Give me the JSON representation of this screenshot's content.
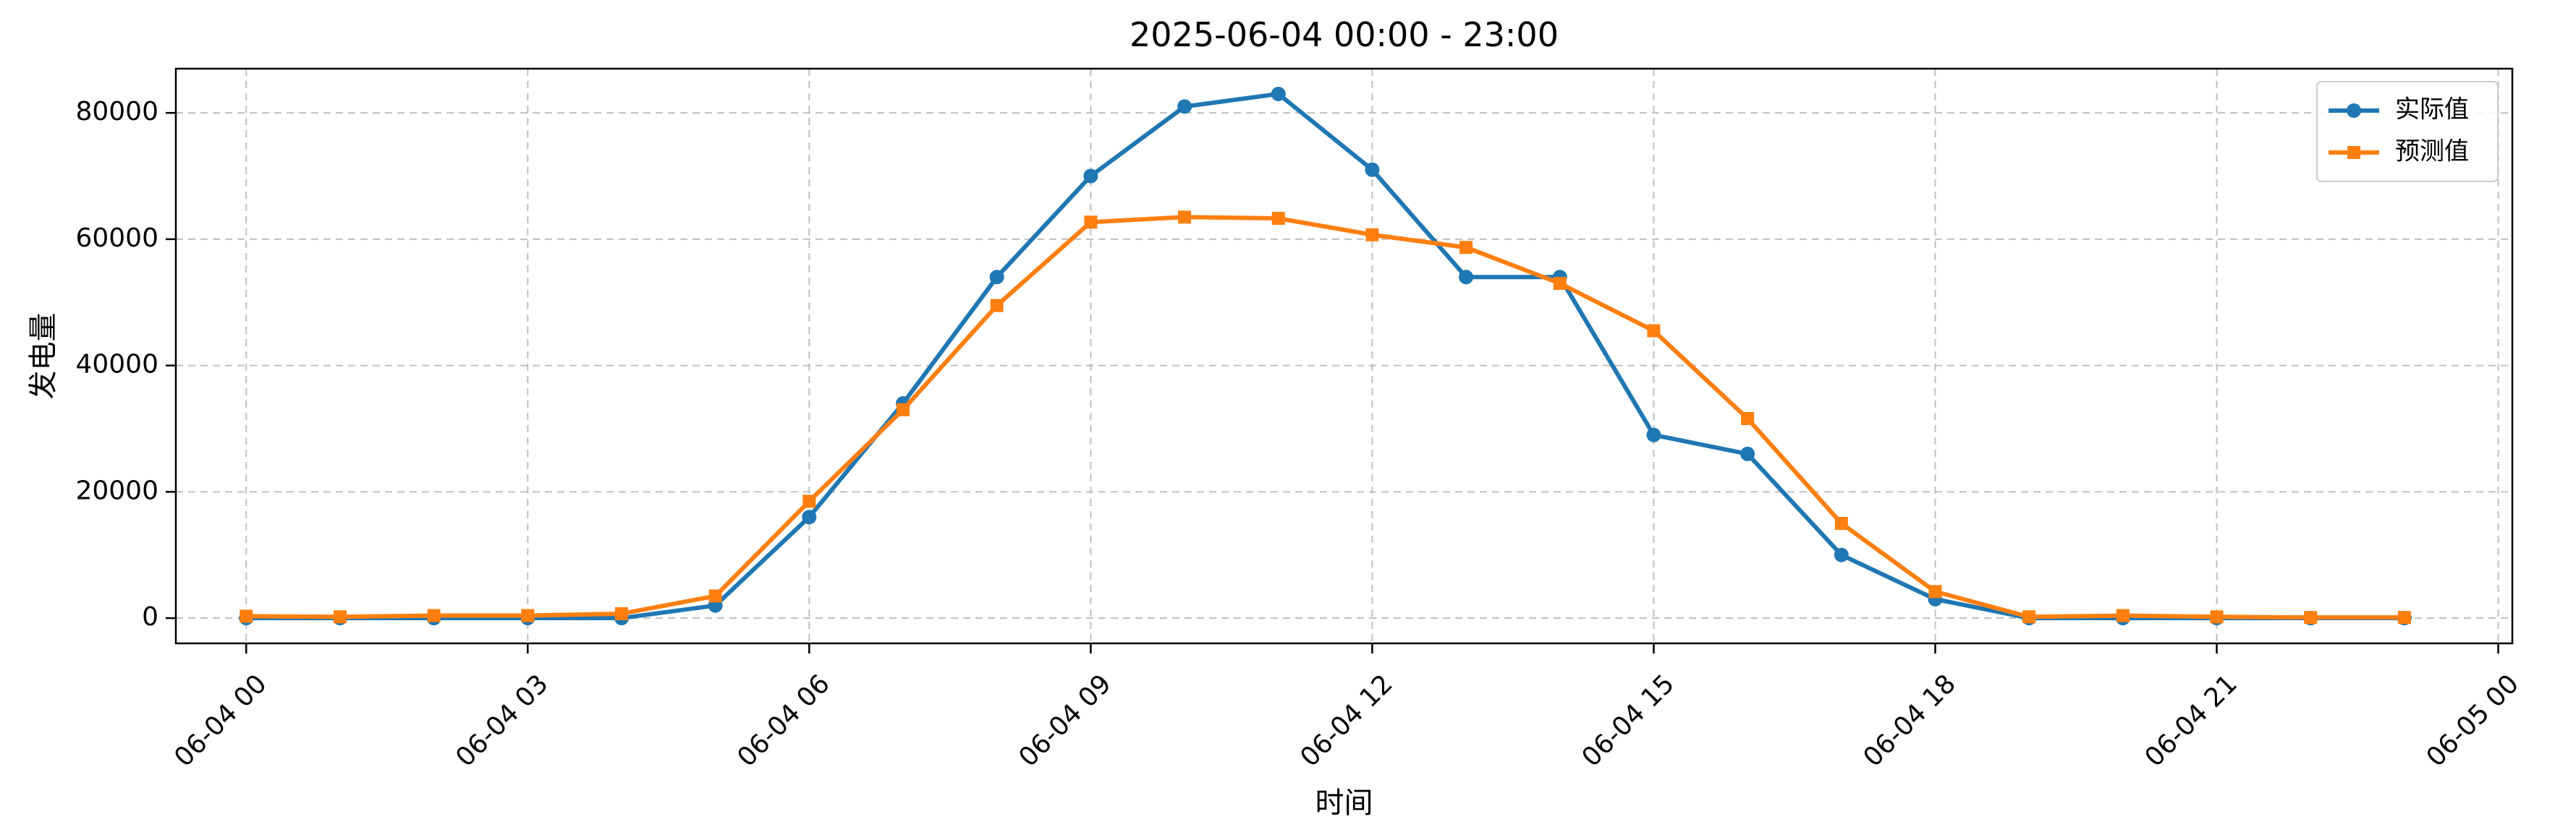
{
  "chart_data": {
    "type": "line",
    "title": "2025-06-04 00:00 - 23:00",
    "xlabel": "时间",
    "ylabel": "发电量",
    "x_unit": "hour of day",
    "xlim": [
      -0.75,
      24.15
    ],
    "ylim": [
      -4000,
      87000
    ],
    "x_ticks": [
      0,
      3,
      6,
      9,
      12,
      15,
      18,
      21,
      24
    ],
    "x_tick_labels": [
      "06-04 00",
      "06-04 03",
      "06-04 06",
      "06-04 09",
      "06-04 12",
      "06-04 15",
      "06-04 18",
      "06-04 21",
      "06-05 00"
    ],
    "y_ticks": [
      0,
      20000,
      40000,
      60000,
      80000
    ],
    "y_tick_labels": [
      "0",
      "20000",
      "40000",
      "60000",
      "80000"
    ],
    "grid": true,
    "legend_position": "top-right",
    "x": [
      0,
      1,
      2,
      3,
      4,
      5,
      6,
      7,
      8,
      9,
      10,
      11,
      12,
      13,
      14,
      15,
      16,
      17,
      18,
      19,
      20,
      21,
      22,
      23
    ],
    "series": [
      {
        "name": "实际值",
        "color": "#1f77b4",
        "marker": "circle",
        "values": [
          0,
          0,
          0,
          0,
          0,
          2000,
          16000,
          34000,
          54000,
          70000,
          81000,
          83000,
          71000,
          54000,
          54000,
          29000,
          26000,
          10000,
          3000,
          0,
          0,
          0,
          0,
          0
        ]
      },
      {
        "name": "预测值",
        "color": "#ff7f0e",
        "marker": "square",
        "values": [
          300,
          200,
          400,
          400,
          700,
          3500,
          18500,
          33000,
          49500,
          62700,
          63500,
          63300,
          60700,
          58700,
          53000,
          45500,
          31600,
          15000,
          4200,
          200,
          400,
          200,
          100,
          100
        ]
      }
    ]
  }
}
